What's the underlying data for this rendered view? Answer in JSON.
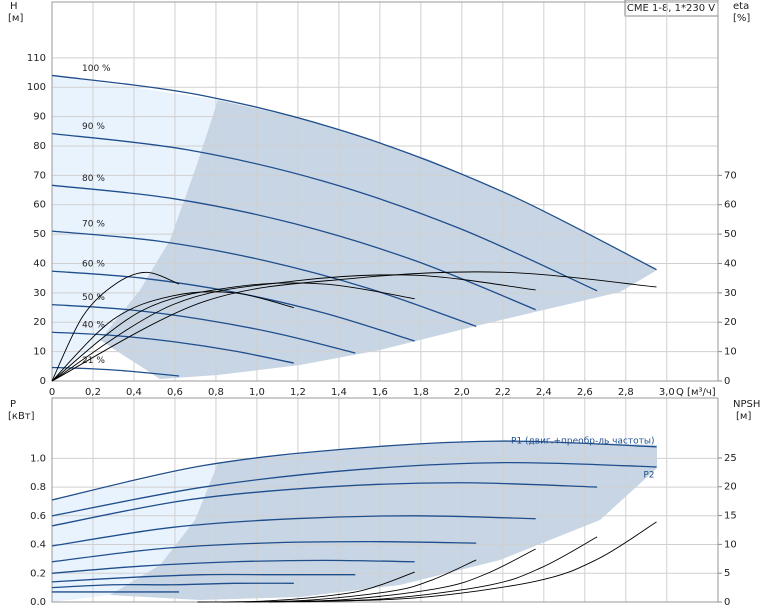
{
  "chart_data": [
    {
      "type": "line",
      "title": "CME 1-8, 1*230 V",
      "y_label": "H",
      "y_unit": "[м]",
      "y2_label": "eta",
      "y2_unit": "[%]",
      "x_label": "Q [м³/ч]",
      "xlim": [
        0,
        3.25
      ],
      "xticks": [
        0,
        {
          "value": 0.2,
          "label": "0,2"
        },
        {
          "value": 0.4,
          "label": "0,4"
        },
        {
          "value": 0.6,
          "label": "0,6"
        },
        {
          "value": 0.8,
          "label": "0,8"
        },
        {
          "value": 1.0,
          "label": "1,0"
        },
        {
          "value": 1.2,
          "label": "1,2"
        },
        {
          "value": 1.4,
          "label": "1,4"
        },
        {
          "value": 1.6,
          "label": "1,6"
        },
        {
          "value": 1.8,
          "label": "1,8"
        },
        {
          "value": 2.0,
          "label": "2,0"
        },
        {
          "value": 2.2,
          "label": "2,2"
        },
        {
          "value": 2.4,
          "label": "2,4"
        },
        {
          "value": 2.6,
          "label": "2,6"
        },
        {
          "value": 2.8,
          "label": "2,8"
        },
        {
          "value": 3.0,
          "label": "3,0"
        }
      ],
      "ylim": [
        0,
        129
      ],
      "yticks": [
        0,
        10,
        20,
        30,
        40,
        50,
        60,
        70,
        80,
        90,
        100,
        110
      ],
      "y2lim": [
        0,
        129
      ],
      "y2ticks": [
        0,
        10,
        20,
        30,
        40,
        50,
        60,
        70
      ],
      "grid": true,
      "series": [
        {
          "name": "100 %",
          "color": "#1f4e8c",
          "x": [
            0,
            0.74,
            1.48,
            2.21,
            2.95
          ],
          "values": [
            104,
            97.1,
            83.8,
            64.1,
            37.9
          ]
        },
        {
          "name": "90 %",
          "color": "#1f4e8c",
          "x": [
            0,
            0.66,
            1.33,
            1.99,
            2.66
          ],
          "values": [
            84.2,
            78.7,
            67.9,
            51.9,
            30.7
          ]
        },
        {
          "name": "80 %",
          "color": "#1f4e8c",
          "x": [
            0,
            0.59,
            1.18,
            1.77,
            2.36
          ],
          "values": [
            66.6,
            62.1,
            53.6,
            41,
            24.3
          ]
        },
        {
          "name": "70 %",
          "color": "#1f4e8c",
          "x": [
            0,
            0.52,
            1.03,
            1.55,
            2.07
          ],
          "values": [
            51,
            47.6,
            41.1,
            31.4,
            18.6
          ]
        },
        {
          "name": "60 %",
          "color": "#1f4e8c",
          "x": [
            0,
            0.44,
            0.89,
            1.33,
            1.77
          ],
          "values": [
            37.4,
            35,
            30.2,
            23.1,
            13.6
          ]
        },
        {
          "name": "50 %",
          "color": "#1f4e8c",
          "x": [
            0,
            0.37,
            0.74,
            1.11,
            1.48
          ],
          "values": [
            26,
            24.3,
            20.9,
            16,
            9.5
          ]
        },
        {
          "name": "40 %",
          "color": "#1f4e8c",
          "x": [
            0,
            0.3,
            0.59,
            0.89,
            1.18
          ],
          "values": [
            16.6,
            15.5,
            13.4,
            10.2,
            6.1
          ]
        },
        {
          "name": "21 %",
          "color": "#1f4e8c",
          "x": [
            0,
            0.15,
            0.31,
            0.46,
            0.62
          ],
          "values": [
            4.6,
            4.3,
            3.7,
            2.8,
            1.7
          ]
        },
        {
          "color": "#000000",
          "axis": "y2",
          "x": [
            0,
            0.74,
            1.48,
            2.21,
            2.95
          ],
          "values": [
            0,
            27,
            35,
            37,
            32
          ]
        },
        {
          "color": "#000000",
          "axis": "y2",
          "x": [
            0,
            0.59,
            1.18,
            1.77,
            2.36
          ],
          "values": [
            0,
            26,
            34,
            36,
            31
          ]
        },
        {
          "color": "#000000",
          "axis": "y2",
          "x": [
            0,
            0.44,
            0.89,
            1.33,
            1.77
          ],
          "values": [
            0,
            24,
            32,
            33,
            28
          ]
        },
        {
          "color": "#000000",
          "axis": "y2",
          "x": [
            0,
            0.3,
            0.59,
            0.89,
            1.18
          ],
          "values": [
            0,
            21,
            29,
            30,
            25
          ]
        },
        {
          "color": "#000000",
          "axis": "y2",
          "x": [
            0,
            0.15,
            0.31,
            0.46,
            0.62
          ],
          "values": [
            0,
            22,
            33,
            37,
            33
          ]
        }
      ]
    },
    {
      "type": "line",
      "y_label": "P",
      "y_unit": "[кВт]",
      "y2_label": "NPSH",
      "y2_unit": "[м]",
      "xlim": [
        0,
        3.25
      ],
      "xticks": [
        0,
        0.2,
        0.4,
        0.6,
        0.8,
        1.0,
        1.2,
        1.4,
        1.6,
        1.8,
        2.0,
        2.2,
        2.4,
        2.6,
        2.8,
        3.0
      ],
      "ylim": [
        0,
        1.42
      ],
      "yticks": [
        {
          "value": 0,
          "label": "0.0"
        },
        0.2,
        0.4,
        0.6,
        0.8,
        {
          "value": 1,
          "label": "1.0"
        }
      ],
      "y2lim": [
        0,
        35.4
      ],
      "y2ticks": [
        0,
        5,
        10,
        15,
        20,
        25
      ],
      "grid": true,
      "series": [
        {
          "name": "P1 (двиг.+преобр-ль частоты)",
          "color": "#1f4e8c",
          "x": [
            0,
            0.74,
            1.48,
            2.21,
            2.95
          ],
          "values": [
            0.71,
            0.95,
            1.07,
            1.12,
            1.08
          ]
        },
        {
          "name": "P2",
          "color": "#1f4e8c",
          "x": [
            0,
            0.74,
            1.48,
            2.21,
            2.95
          ],
          "values": [
            0.6,
            0.8,
            0.92,
            0.97,
            0.94
          ]
        },
        {
          "color": "#1f4e8c",
          "x": [
            0,
            0.66,
            1.33,
            1.99,
            2.66
          ],
          "values": [
            0.53,
            0.71,
            0.8,
            0.83,
            0.8
          ]
        },
        {
          "color": "#1f4e8c",
          "x": [
            0,
            0.59,
            1.18,
            1.77,
            2.36
          ],
          "values": [
            0.39,
            0.52,
            0.58,
            0.6,
            0.58
          ]
        },
        {
          "color": "#1f4e8c",
          "x": [
            0,
            0.52,
            1.03,
            1.55,
            2.07
          ],
          "values": [
            0.28,
            0.37,
            0.41,
            0.42,
            0.41
          ]
        },
        {
          "color": "#1f4e8c",
          "x": [
            0,
            0.44,
            0.89,
            1.33,
            1.77
          ],
          "values": [
            0.2,
            0.25,
            0.28,
            0.29,
            0.28
          ]
        },
        {
          "color": "#1f4e8c",
          "x": [
            0,
            0.37,
            0.74,
            1.11,
            1.48
          ],
          "values": [
            0.14,
            0.17,
            0.19,
            0.19,
            0.19
          ]
        },
        {
          "color": "#1f4e8c",
          "x": [
            0,
            0.3,
            0.59,
            0.89,
            1.18
          ],
          "values": [
            0.1,
            0.12,
            0.12,
            0.13,
            0.13
          ]
        },
        {
          "color": "#1f4e8c",
          "x": [
            0,
            0.15,
            0.31,
            0.46,
            0.62
          ],
          "values": [
            0.07,
            0.07,
            0.07,
            0.07,
            0.07
          ]
        },
        {
          "color": "#000000",
          "axis": "y2",
          "x": [
            1.18,
            1.77,
            2.36,
            2.66,
            2.95
          ],
          "values": [
            0.1,
            0.7,
            3.6,
            7.4,
            13.9
          ]
        },
        {
          "color": "#000000",
          "axis": "y2",
          "x": [
            1.06,
            1.6,
            2.13,
            2.39,
            2.66
          ],
          "values": [
            0,
            0.5,
            2.9,
            6,
            11.3
          ]
        },
        {
          "color": "#000000",
          "axis": "y2",
          "x": [
            0.94,
            1.42,
            1.89,
            2.12,
            2.36
          ],
          "values": [
            0,
            0.4,
            2.4,
            4.9,
            9.2
          ]
        },
        {
          "color": "#000000",
          "axis": "y2",
          "x": [
            0.83,
            1.24,
            1.66,
            1.86,
            2.07
          ],
          "values": [
            0,
            0.3,
            1.9,
            3.9,
            7.3
          ]
        },
        {
          "color": "#000000",
          "axis": "y2",
          "x": [
            0.71,
            1.06,
            1.42,
            1.59,
            1.77
          ],
          "values": [
            0,
            0.2,
            1.4,
            2.8,
            5.2
          ]
        }
      ]
    }
  ]
}
